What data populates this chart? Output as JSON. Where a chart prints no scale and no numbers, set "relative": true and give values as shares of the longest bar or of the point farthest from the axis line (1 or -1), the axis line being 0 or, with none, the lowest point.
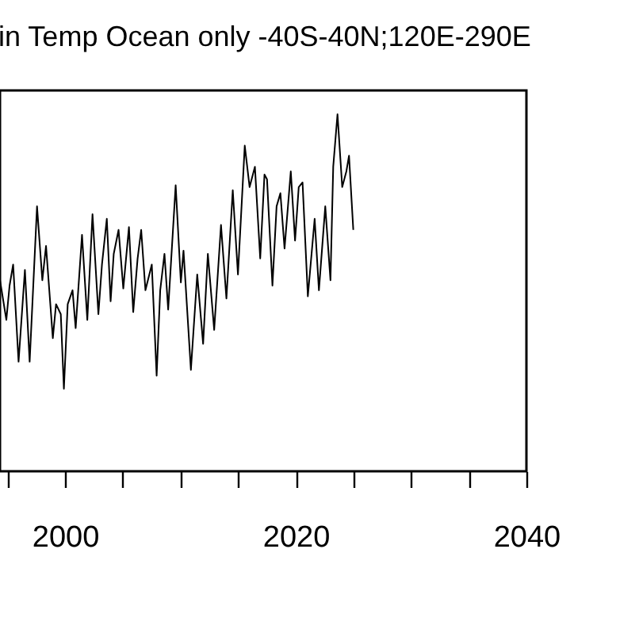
{
  "chart_data": {
    "type": "line",
    "title": "in Temp Ocean only -40S-40N;120E-290E",
    "relative": true,
    "grid": false,
    "tick_labels": "x",
    "xlim": [
      1994.36,
      2040
    ],
    "xticks": [
      {
        "value": 1995,
        "label": null
      },
      2000,
      {
        "value": 2005,
        "label": null
      },
      {
        "value": 2010,
        "label": null
      },
      {
        "value": 2015,
        "label": null
      },
      2020,
      {
        "value": 2025,
        "label": null
      },
      {
        "value": 2030,
        "label": null
      },
      {
        "value": 2035,
        "label": null
      },
      2040
    ],
    "series": [
      {
        "color": "#000000",
        "x": [
          1994.36,
          1994.91,
          1995.19,
          1995.5,
          1995.97,
          1996.52,
          1996.93,
          1997.57,
          1998.03,
          1998.35,
          1998.94,
          1999.22,
          1999.63,
          1999.9,
          2000.23,
          2000.65,
          2000.92,
          2001.47,
          2001.93,
          2002.38,
          2002.89,
          2003.2,
          2003.62,
          2003.95,
          2004.22,
          2004.64,
          2005.05,
          2005.54,
          2005.91,
          2006.29,
          2006.6,
          2006.97,
          2007.52,
          2007.94,
          2008.25,
          2008.62,
          2008.94,
          2009.59,
          2010.04,
          2010.27,
          2010.91,
          2011.46,
          2011.97,
          2012.38,
          2012.93,
          2013.52,
          2013.99,
          2014.54,
          2014.99,
          2015.58,
          2016.0,
          2016.46,
          2016.92,
          2017.29,
          2017.51,
          2017.98,
          2018.34,
          2018.67,
          2019.03,
          2019.57,
          2019.94,
          2020.26,
          2020.59,
          2021.05,
          2021.64,
          2022.01,
          2022.56,
          2023.01,
          2023.25,
          2023.62,
          2024.03,
          2024.39,
          2024.62,
          2024.99
        ],
        "values": [
          0.535,
          0.424,
          0.52,
          0.579,
          0.307,
          0.564,
          0.307,
          0.742,
          0.535,
          0.631,
          0.373,
          0.468,
          0.44,
          0.231,
          0.468,
          0.507,
          0.401,
          0.662,
          0.424,
          0.72,
          0.44,
          0.579,
          0.707,
          0.476,
          0.609,
          0.676,
          0.512,
          0.684,
          0.446,
          0.596,
          0.676,
          0.507,
          0.579,
          0.268,
          0.507,
          0.609,
          0.453,
          0.801,
          0.529,
          0.618,
          0.284,
          0.551,
          0.357,
          0.609,
          0.396,
          0.69,
          0.484,
          0.787,
          0.551,
          0.912,
          0.796,
          0.853,
          0.596,
          0.831,
          0.818,
          0.52,
          0.742,
          0.779,
          0.624,
          0.84,
          0.646,
          0.796,
          0.809,
          0.49,
          0.707,
          0.507,
          0.742,
          0.535,
          0.853,
          1,
          0.796,
          0.84,
          0.884,
          0.676
        ]
      }
    ]
  }
}
